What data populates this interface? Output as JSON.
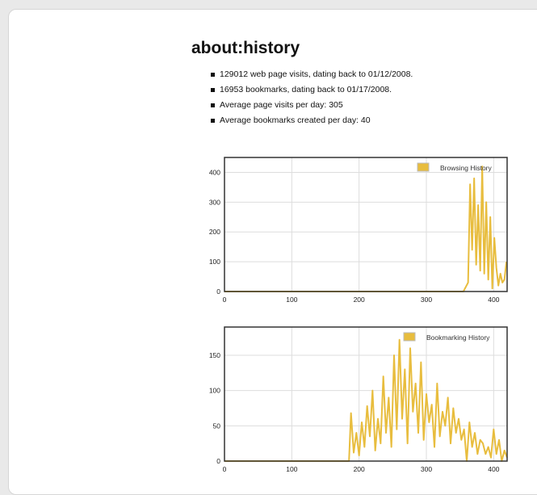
{
  "page": {
    "title": "about:history",
    "stats": [
      "129012 web page visits, dating back to 01/12/2008.",
      "16953 bookmarks, dating back to 01/17/2008.",
      "Average page visits per day: 305",
      "Average bookmarks created per day: 40"
    ]
  },
  "colors": {
    "series": "#e8bd3e",
    "frame": "#333333",
    "grid": "#dddddd"
  },
  "chart_data": [
    {
      "type": "line",
      "legend": "Browsing History",
      "legend_position": "top-right",
      "grid": true,
      "xlim": [
        0,
        420
      ],
      "ylim": [
        0,
        450
      ],
      "xticks": [
        0,
        100,
        200,
        300,
        400
      ],
      "yticks": [
        0,
        100,
        200,
        300,
        400
      ],
      "x": [
        0,
        355,
        362,
        365,
        368,
        371,
        374,
        377,
        380,
        383,
        386,
        389,
        392,
        395,
        398,
        401,
        404,
        407,
        410,
        413,
        416,
        419
      ],
      "y": [
        0,
        0,
        30,
        360,
        140,
        380,
        90,
        290,
        70,
        420,
        60,
        300,
        40,
        250,
        10,
        180,
        80,
        20,
        60,
        30,
        40,
        100
      ]
    },
    {
      "type": "line",
      "legend": "Bookmarking History",
      "legend_position": "top-right",
      "grid": true,
      "xlim": [
        0,
        420
      ],
      "ylim": [
        0,
        190
      ],
      "xticks": [
        0,
        100,
        200,
        300,
        400
      ],
      "yticks": [
        0,
        50,
        100,
        150
      ],
      "x": [
        0,
        185,
        188,
        192,
        196,
        200,
        204,
        208,
        212,
        216,
        220,
        224,
        228,
        232,
        236,
        240,
        244,
        248,
        252,
        256,
        260,
        264,
        268,
        272,
        276,
        280,
        284,
        288,
        292,
        296,
        300,
        304,
        308,
        312,
        316,
        320,
        324,
        328,
        332,
        336,
        340,
        344,
        348,
        352,
        356,
        360,
        364,
        368,
        372,
        376,
        380,
        384,
        388,
        392,
        396,
        400,
        404,
        408,
        412,
        416,
        420
      ],
      "y": [
        0,
        0,
        68,
        12,
        40,
        8,
        55,
        20,
        78,
        35,
        100,
        15,
        60,
        25,
        120,
        40,
        90,
        20,
        150,
        45,
        172,
        60,
        130,
        25,
        160,
        70,
        110,
        40,
        140,
        30,
        95,
        55,
        80,
        20,
        110,
        35,
        70,
        50,
        90,
        25,
        75,
        40,
        60,
        30,
        45,
        0,
        55,
        20,
        40,
        10,
        30,
        25,
        10,
        20,
        5,
        45,
        10,
        30,
        0,
        15,
        5
      ]
    }
  ]
}
